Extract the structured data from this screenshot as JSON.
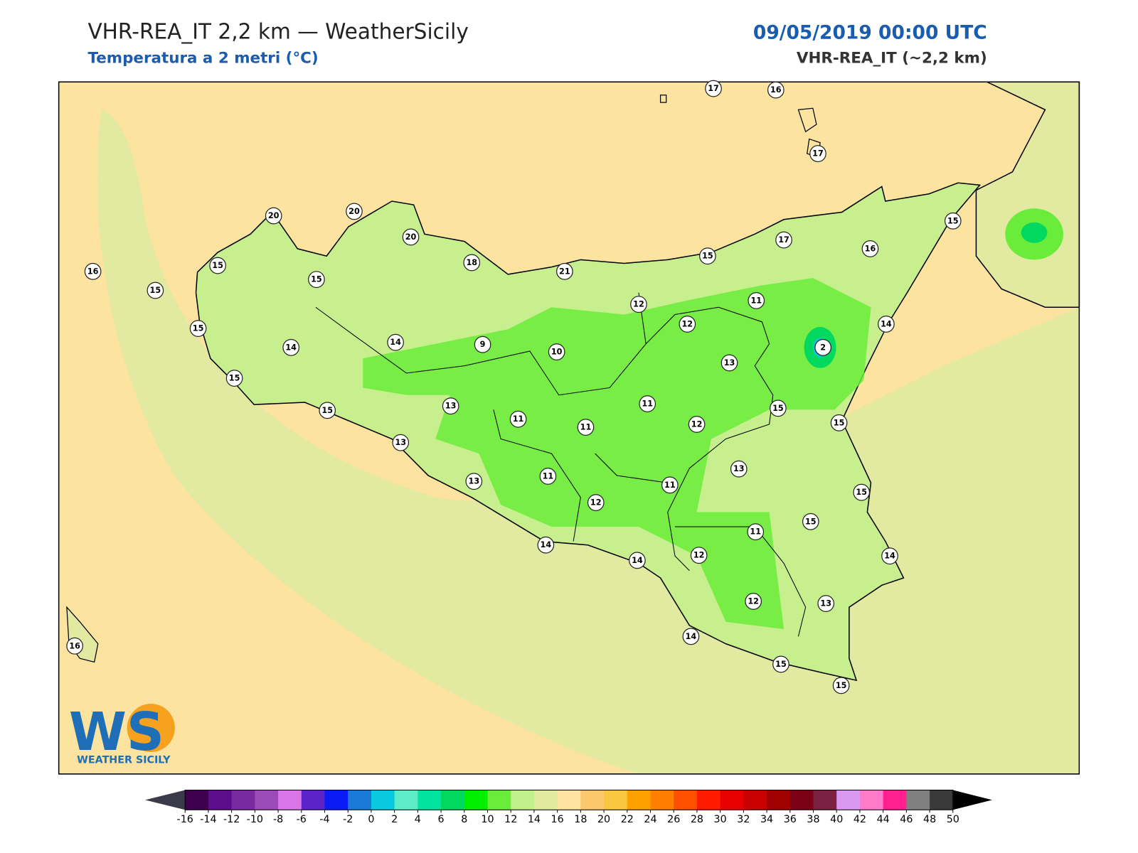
{
  "header": {
    "title": "VHR-REA_IT 2,2 km — WeatherSicily",
    "subtitle": "Temperatura a 2 metri (°C)",
    "datetime": "09/05/2019 00:00 UTC",
    "model": "VHR-REA_IT (~2,2 km)"
  },
  "map": {
    "stations": [
      17,
      16,
      17,
      20,
      20,
      20,
      15,
      17,
      16,
      16,
      15,
      15,
      18,
      21,
      15,
      15,
      15,
      12,
      11,
      12,
      14,
      14,
      9,
      10,
      2,
      14,
      13,
      15,
      11,
      13,
      15,
      15,
      11,
      11,
      12,
      15,
      13,
      13,
      13,
      11,
      11,
      15,
      12,
      15,
      11,
      14,
      14,
      12,
      14,
      12,
      13,
      14,
      15,
      15,
      16
    ]
  },
  "colorbar": {
    "ticks": [
      -16,
      -14,
      -12,
      -10,
      -8,
      -6,
      -4,
      -2,
      0,
      2,
      4,
      6,
      8,
      10,
      12,
      14,
      16,
      18,
      20,
      22,
      24,
      26,
      28,
      30,
      32,
      34,
      36,
      38,
      40,
      42,
      44,
      46,
      48,
      50
    ],
    "colors": [
      "#3c004f",
      "#5c0d8a",
      "#7a2aa0",
      "#9b4bb5",
      "#d977e8",
      "#5a24c8",
      "#0a1bf5",
      "#1a7ad8",
      "#0ac8e0",
      "#5cedc8",
      "#00e4a0",
      "#00d860",
      "#00ee00",
      "#6aec3a",
      "#c2f08a",
      "#e2eaa0",
      "#ffe3a0",
      "#fcc86c",
      "#f9c740",
      "#fca100",
      "#ff7f00",
      "#ff5000",
      "#ff1a00",
      "#e80000",
      "#c80000",
      "#a00000",
      "#7a0015",
      "#7a2040",
      "#d999f0",
      "#ff7ac8",
      "#ff1f8f",
      "#808080",
      "#3a3a3a"
    ],
    "under_color": "#3a3a4a",
    "over_color": "#000000"
  },
  "logo": {
    "letters": "WS",
    "text": "WEATHER SICILY"
  }
}
